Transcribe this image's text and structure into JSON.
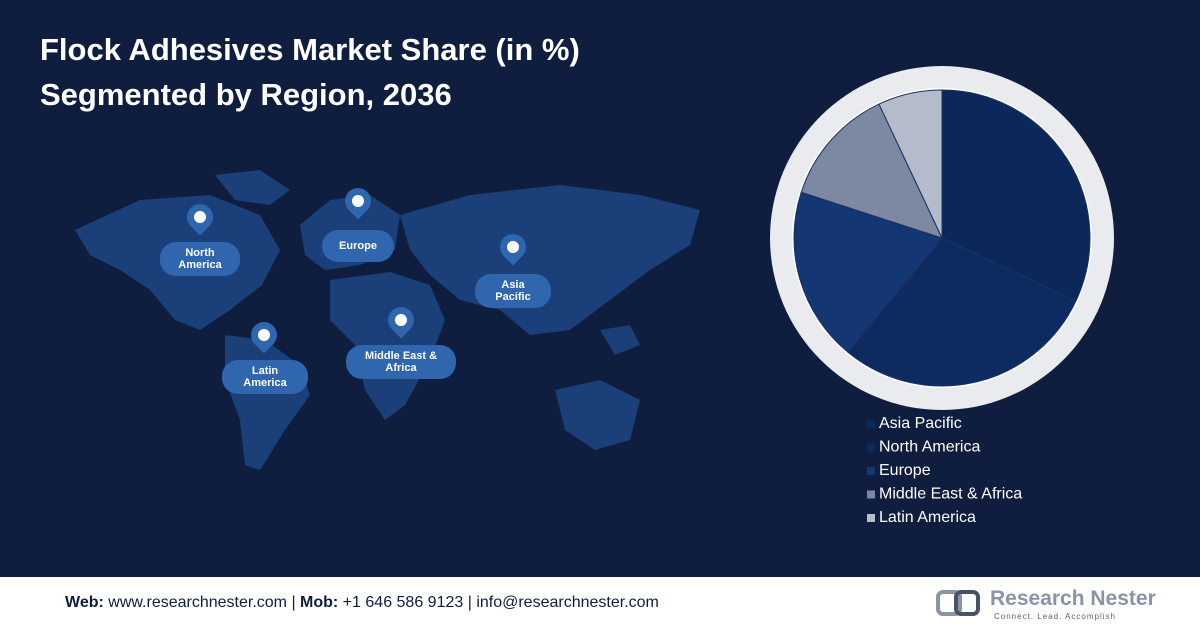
{
  "chart_data": {
    "type": "pie",
    "title": "Flock Adhesives Market Share (in %)",
    "subtitle": "Segmented by Region, 2036",
    "categories": [
      "Asia Pacific",
      "North America",
      "Europe",
      "Middle East & Africa",
      "Latin America"
    ],
    "values": [
      32,
      29,
      19,
      13,
      7
    ],
    "colors": [
      "#0c285a",
      "#0e2b61",
      "#143672",
      "#7d88a2",
      "#b4bbca"
    ]
  },
  "map_labels": [
    "North America",
    "Europe",
    "Asia Pacific",
    "Latin America",
    "Middle East & Africa"
  ],
  "footer": {
    "web_label": "Web:",
    "web": "www.researchnester.com",
    "mob_label": "Mob:",
    "mob": "+1 646 586 9123",
    "email": "info@researchnester.com",
    "brand": "Research Nester",
    "tagline": "Connect. Lead. Accomplish"
  }
}
